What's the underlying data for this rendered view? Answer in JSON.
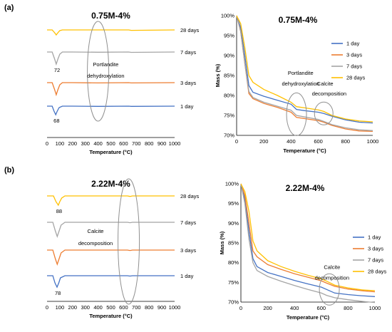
{
  "panel_labels": [
    "(a)",
    "(b)"
  ],
  "colors": {
    "1 day": "#4472c4",
    "3 days": "#ed7d31",
    "7 days": "#a5a5a5",
    "28 days": "#ffc000"
  },
  "chart_data": [
    {
      "type": "line",
      "panel": "(a)",
      "title": "0.75M-4%",
      "xlabel": "Temperature (°C)",
      "ylabel": "",
      "xlim": [
        0,
        1000
      ],
      "xticks": [
        "0",
        "100",
        "200",
        "300",
        "400",
        "500",
        "600",
        "700",
        "800",
        "900",
        "1000"
      ],
      "y_axis": "none (curves vertically offset)",
      "series_order_top_to_bottom": [
        "28 days",
        "7 days",
        "3 days",
        "1 day"
      ],
      "curve_labels": [
        "28 days",
        "7 days",
        "3 days",
        "1 day"
      ],
      "peak_labels": [
        {
          "series": "7 days",
          "text": "72"
        },
        {
          "series": "1 day",
          "text": "68"
        }
      ],
      "annotations": [
        "Portlandite",
        "dehydroxylation"
      ],
      "series": [
        {
          "name": "28 days",
          "x": [
            0,
            40,
            60,
            72,
            85,
            100,
            120,
            200,
            400,
            640,
            660,
            1000
          ],
          "values": [
            0,
            0,
            4,
            7,
            4,
            1,
            0,
            0,
            0,
            0,
            0.6,
            0
          ]
        },
        {
          "name": "7 days",
          "x": [
            0,
            40,
            60,
            72,
            85,
            100,
            120,
            200,
            400,
            640,
            660,
            1000
          ],
          "values": [
            0,
            0,
            10,
            17,
            10,
            3,
            0,
            0,
            0.3,
            0,
            0.5,
            0
          ]
        },
        {
          "name": "3 days",
          "x": [
            0,
            40,
            60,
            72,
            85,
            100,
            120,
            200,
            400,
            640,
            660,
            1000
          ],
          "values": [
            0,
            0,
            10,
            17,
            10,
            3,
            0,
            0,
            0.4,
            0,
            0.4,
            0
          ]
        },
        {
          "name": "1 day",
          "x": [
            0,
            40,
            55,
            68,
            80,
            95,
            120,
            200,
            400,
            640,
            660,
            1000
          ],
          "values": [
            0,
            0,
            7,
            12,
            7,
            2,
            0,
            0,
            0.3,
            0,
            0.3,
            0
          ]
        }
      ]
    },
    {
      "type": "line",
      "panel": "(a)",
      "title": "0.75M-4%",
      "xlabel": "Temperature (°C)",
      "ylabel": "Mass (%)",
      "xlim": [
        0,
        1000
      ],
      "ylim": [
        70,
        100
      ],
      "xticks": [
        "0",
        "200",
        "400",
        "600",
        "800",
        "1000"
      ],
      "yticks": [
        "70%",
        "75%",
        "80%",
        "85%",
        "90%",
        "95%",
        "100%"
      ],
      "legend_position": "right",
      "annotations": [
        "Portlandite",
        "dehydroxylation",
        "Calcite",
        "decomposition"
      ],
      "series": [
        {
          "name": "1 day",
          "x": [
            0,
            30,
            60,
            90,
            120,
            200,
            300,
            400,
            440,
            500,
            600,
            640,
            700,
            800,
            900,
            1000
          ],
          "values": [
            100,
            97,
            90,
            82.5,
            80.8,
            79.8,
            78.8,
            77.8,
            76.5,
            76.2,
            75.8,
            75.5,
            74.8,
            73.9,
            73.3,
            73.1
          ]
        },
        {
          "name": "3 days",
          "x": [
            0,
            30,
            60,
            90,
            120,
            200,
            300,
            400,
            440,
            500,
            600,
            640,
            700,
            800,
            900,
            1000
          ],
          "values": [
            100,
            96,
            88,
            80.5,
            79.2,
            78.0,
            77.0,
            75.8,
            74.5,
            74.2,
            73.7,
            73.3,
            72.5,
            71.6,
            71.1,
            71.0
          ]
        },
        {
          "name": "7 days",
          "x": [
            0,
            30,
            60,
            90,
            120,
            200,
            300,
            400,
            440,
            500,
            600,
            640,
            700,
            800,
            900,
            1000
          ],
          "values": [
            100,
            96,
            88,
            81,
            79.5,
            78.3,
            77.3,
            76.3,
            75,
            74.6,
            74.0,
            73.5,
            72.7,
            71.9,
            71.4,
            71.2
          ]
        },
        {
          "name": "28 days",
          "x": [
            0,
            30,
            60,
            90,
            120,
            200,
            300,
            400,
            440,
            500,
            600,
            640,
            700,
            800,
            900,
            1000
          ],
          "values": [
            100,
            98,
            92,
            85,
            83.3,
            81.5,
            80.0,
            78.3,
            77.2,
            76.9,
            76.4,
            76.0,
            75.0,
            74.1,
            73.6,
            73.4
          ]
        }
      ]
    },
    {
      "type": "line",
      "panel": "(b)",
      "title": "2.22M-4%",
      "xlabel": "Temperature (°C)",
      "ylabel": "",
      "xlim": [
        0,
        1000
      ],
      "xticks": [
        "0",
        "100",
        "200",
        "300",
        "400",
        "500",
        "600",
        "700",
        "800",
        "900",
        "1000"
      ],
      "y_axis": "none (curves vertically offset)",
      "series_order_top_to_bottom": [
        "28 days",
        "7 days",
        "3 days",
        "1 day"
      ],
      "curve_labels": [
        "28 days",
        "7 days",
        "3 days",
        "1 day"
      ],
      "peak_labels": [
        {
          "series": "28 days",
          "text": "88"
        },
        {
          "series": "1 day",
          "text": "78"
        }
      ],
      "annotations": [
        "Calcite",
        "decomposition"
      ],
      "series": [
        {
          "name": "28 days",
          "x": [
            0,
            50,
            70,
            88,
            100,
            115,
            140,
            200,
            630,
            650,
            670,
            1000
          ],
          "values": [
            0,
            0,
            8,
            13,
            8,
            3,
            0,
            0,
            0,
            0.7,
            0,
            0
          ]
        },
        {
          "name": "7 days",
          "x": [
            0,
            45,
            65,
            80,
            95,
            110,
            140,
            200,
            630,
            650,
            670,
            1000
          ],
          "values": [
            0,
            0,
            12,
            20,
            12,
            4,
            0,
            0,
            0,
            0.6,
            0,
            0
          ]
        },
        {
          "name": "3 days",
          "x": [
            0,
            45,
            65,
            80,
            95,
            110,
            140,
            200,
            630,
            650,
            670,
            1000
          ],
          "values": [
            0,
            0,
            12,
            20,
            12,
            4,
            0,
            0,
            0,
            0.6,
            0,
            0
          ]
        },
        {
          "name": "1 day",
          "x": [
            0,
            45,
            62,
            78,
            92,
            105,
            140,
            200,
            630,
            650,
            670,
            1000
          ],
          "values": [
            0,
            0,
            10,
            16,
            10,
            3,
            0,
            0,
            0,
            0.5,
            0,
            0
          ]
        }
      ]
    },
    {
      "type": "line",
      "panel": "(b)",
      "title": "2.22M-4%",
      "xlabel": "Temperature (°C)",
      "ylabel": "Mass (%)",
      "xlim": [
        0,
        1000
      ],
      "ylim": [
        70,
        100
      ],
      "xticks": [
        "0",
        "200",
        "400",
        "600",
        "800",
        "1000"
      ],
      "yticks": [
        "70%",
        "75%",
        "80%",
        "85%",
        "90%",
        "95%",
        "100%"
      ],
      "legend_position": "right",
      "annotations": [
        "Calcite",
        "decomposition"
      ],
      "series": [
        {
          "name": "1 day",
          "x": [
            0,
            30,
            60,
            90,
            120,
            200,
            300,
            400,
            500,
            600,
            640,
            700,
            800,
            900,
            1000
          ],
          "values": [
            100,
            96,
            88,
            81,
            79,
            77.5,
            76.5,
            75.5,
            74.6,
            73.8,
            73.2,
            72.3,
            71.9,
            71.6,
            71.4
          ]
        },
        {
          "name": "3 days",
          "x": [
            0,
            30,
            60,
            90,
            120,
            200,
            300,
            400,
            500,
            600,
            640,
            700,
            800,
            900,
            1000
          ],
          "values": [
            100,
            97,
            90,
            83,
            81.5,
            79.5,
            78.3,
            77.2,
            76.3,
            75.4,
            74.8,
            74.0,
            73.3,
            72.9,
            72.6
          ]
        },
        {
          "name": "7 days",
          "x": [
            0,
            30,
            60,
            90,
            120,
            200,
            300,
            400,
            500,
            600,
            640,
            700,
            800,
            900,
            1000
          ],
          "values": [
            100,
            95,
            86,
            80,
            78,
            76.5,
            75.3,
            74.2,
            73.2,
            72.3,
            71.7,
            71.1,
            70.6,
            70.2,
            69.9
          ]
        },
        {
          "name": "28 days",
          "x": [
            0,
            30,
            60,
            90,
            120,
            200,
            300,
            400,
            500,
            600,
            640,
            700,
            800,
            900,
            1000
          ],
          "values": [
            100,
            98,
            93,
            85.5,
            83,
            80.5,
            79,
            77.8,
            76.8,
            75.9,
            75.3,
            74.3,
            73.6,
            73.1,
            72.9
          ]
        }
      ]
    }
  ]
}
